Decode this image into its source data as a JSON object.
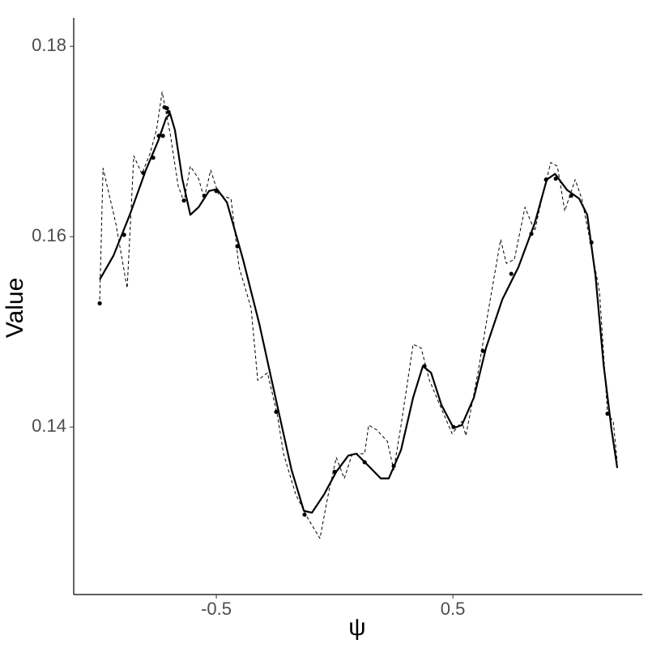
{
  "chart_data": {
    "type": "line",
    "xlabel": "ψ",
    "ylabel": "Value",
    "xlim": [
      -1.103,
      1.301
    ],
    "ylim": [
      0.1224,
      0.183
    ],
    "xticks": [
      -0.5,
      0.5
    ],
    "yticks": [
      0.14,
      0.16,
      0.18
    ],
    "series": [
      {
        "style": "points",
        "color": "#000000",
        "x": [
          -0.993,
          -0.89,
          -0.808,
          -0.767,
          -0.743,
          -0.726,
          -0.719,
          -0.709,
          -0.702,
          -0.637,
          -0.551,
          -0.5,
          -0.411,
          -0.247,
          -0.127,
          0.0,
          0.127,
          0.25,
          0.38,
          0.503,
          0.627,
          0.747,
          0.832,
          0.894,
          0.935,
          1.0,
          1.086,
          1.154
        ],
        "values": [
          0.153,
          0.1602,
          0.1667,
          0.1683,
          0.1706,
          0.1706,
          0.1736,
          0.1735,
          0.1731,
          0.1638,
          0.1643,
          0.1648,
          0.159,
          0.1416,
          0.1308,
          0.1353,
          0.1363,
          0.1359,
          0.1464,
          0.14,
          0.148,
          0.1561,
          0.1603,
          0.166,
          0.1661,
          0.1643,
          0.1594,
          0.1414
        ]
      },
      {
        "style": "solid",
        "color": "#000000",
        "x": [
          -0.993,
          -0.935,
          -0.866,
          -0.798,
          -0.747,
          -0.712,
          -0.695,
          -0.675,
          -0.644,
          -0.61,
          -0.575,
          -0.531,
          -0.497,
          -0.455,
          -0.387,
          -0.318,
          -0.25,
          -0.182,
          -0.13,
          -0.096,
          -0.045,
          0.007,
          0.058,
          0.092,
          0.144,
          0.195,
          0.229,
          0.281,
          0.332,
          0.373,
          0.408,
          0.452,
          0.503,
          0.538,
          0.589,
          0.64,
          0.709,
          0.777,
          0.846,
          0.897,
          0.932,
          0.983,
          1.034,
          1.068,
          1.103,
          1.137,
          1.171,
          1.195
        ],
        "values": [
          0.1555,
          0.158,
          0.1623,
          0.167,
          0.17,
          0.1725,
          0.1729,
          0.1712,
          0.1661,
          0.1623,
          0.1631,
          0.1648,
          0.165,
          0.1636,
          0.1576,
          0.1508,
          0.1431,
          0.1355,
          0.1312,
          0.131,
          0.1329,
          0.1353,
          0.137,
          0.1372,
          0.1359,
          0.1346,
          0.1346,
          0.1376,
          0.1431,
          0.1464,
          0.1457,
          0.1423,
          0.1399,
          0.1402,
          0.1431,
          0.1483,
          0.1534,
          0.1568,
          0.1614,
          0.166,
          0.1666,
          0.1649,
          0.164,
          0.1623,
          0.1559,
          0.1466,
          0.1397,
          0.1357
        ]
      },
      {
        "style": "dashed",
        "color": "#000000",
        "x": [
          -0.993,
          -0.979,
          -0.925,
          -0.877,
          -0.849,
          -0.815,
          -0.781,
          -0.753,
          -0.729,
          -0.695,
          -0.661,
          -0.637,
          -0.61,
          -0.575,
          -0.551,
          -0.524,
          -0.49,
          -0.438,
          -0.404,
          -0.353,
          -0.325,
          -0.284,
          -0.243,
          -0.216,
          -0.164,
          -0.113,
          -0.062,
          -0.027,
          0.007,
          0.041,
          0.075,
          0.127,
          0.144,
          0.178,
          0.223,
          0.25,
          0.281,
          0.332,
          0.366,
          0.401,
          0.452,
          0.497,
          0.538,
          0.555,
          0.606,
          0.658,
          0.702,
          0.726,
          0.76,
          0.805,
          0.846,
          0.88,
          0.914,
          0.942,
          0.973,
          1.017,
          1.045,
          1.079,
          1.12,
          1.154,
          1.178,
          1.195
        ],
        "values": [
          0.1534,
          0.1672,
          0.1614,
          0.1546,
          0.1685,
          0.1666,
          0.1687,
          0.1712,
          0.1752,
          0.1708,
          0.1653,
          0.1637,
          0.1674,
          0.1661,
          0.164,
          0.167,
          0.1644,
          0.164,
          0.1568,
          0.1525,
          0.1449,
          0.1457,
          0.1414,
          0.1372,
          0.1329,
          0.1304,
          0.1283,
          0.1329,
          0.1368,
          0.1346,
          0.1372,
          0.1372,
          0.1402,
          0.1397,
          0.1385,
          0.1355,
          0.1402,
          0.1487,
          0.1483,
          0.1449,
          0.1419,
          0.1393,
          0.1406,
          0.1391,
          0.1457,
          0.1534,
          0.1597,
          0.1572,
          0.1576,
          0.1631,
          0.1606,
          0.1644,
          0.1678,
          0.1674,
          0.1627,
          0.166,
          0.164,
          0.1597,
          0.1542,
          0.1414,
          0.1406,
          0.1363
        ]
      }
    ]
  }
}
